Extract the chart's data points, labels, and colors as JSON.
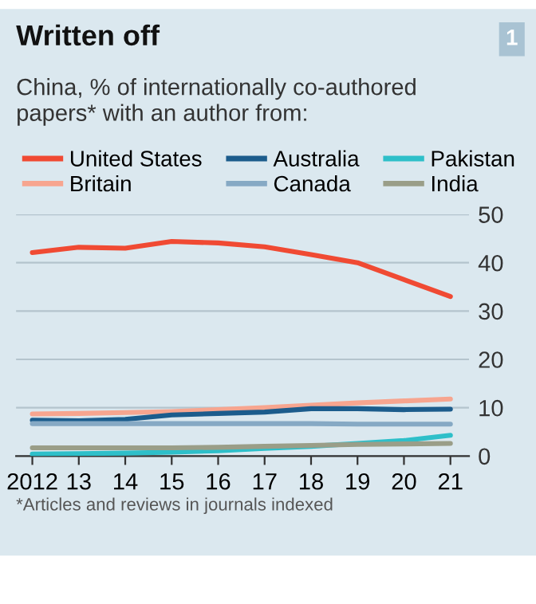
{
  "chart_data": {
    "type": "line",
    "title": "Written off",
    "subtitle": "China, % of internationally co-authored\npapers* with an author from:",
    "categories": [
      "2012",
      "13",
      "14",
      "15",
      "16",
      "17",
      "18",
      "19",
      "20",
      "21"
    ],
    "series": [
      {
        "name": "United States",
        "color": "#f04a33",
        "values": [
          42.1,
          43.2,
          43,
          44.4,
          44.1,
          43.3,
          41.7,
          40,
          36.5,
          33
        ]
      },
      {
        "name": "Britain",
        "color": "#f7a58f",
        "values": [
          8.7,
          8.8,
          9,
          9.2,
          9.6,
          10,
          10.5,
          11,
          11.4,
          11.8
        ]
      },
      {
        "name": "Australia",
        "color": "#1c5c8c",
        "values": [
          7.4,
          7.3,
          7.6,
          8.5,
          8.8,
          9.1,
          9.8,
          9.8,
          9.6,
          9.7
        ]
      },
      {
        "name": "Canada",
        "color": "#86a9c4",
        "values": [
          6.7,
          6.7,
          6.7,
          6.7,
          6.7,
          6.7,
          6.7,
          6.6,
          6.6,
          6.6
        ]
      },
      {
        "name": "Pakistan",
        "color": "#2ebfc9",
        "values": [
          0.4,
          0.5,
          0.6,
          0.8,
          1.1,
          1.6,
          2,
          2.6,
          3.2,
          4.3
        ]
      },
      {
        "name": "India",
        "color": "#9a9e88",
        "values": [
          1.7,
          1.7,
          1.7,
          1.7,
          1.8,
          2,
          2.2,
          2.4,
          2.5,
          2.6
        ]
      }
    ],
    "ylim": [
      0,
      50
    ],
    "yticks": [
      0,
      10,
      20,
      30,
      40,
      50
    ],
    "grid": "y",
    "legend": "top",
    "marker": "none",
    "line_style": "solid",
    "annotations": [
      "1",
      "*Articles and reviews in journals indexed"
    ]
  }
}
